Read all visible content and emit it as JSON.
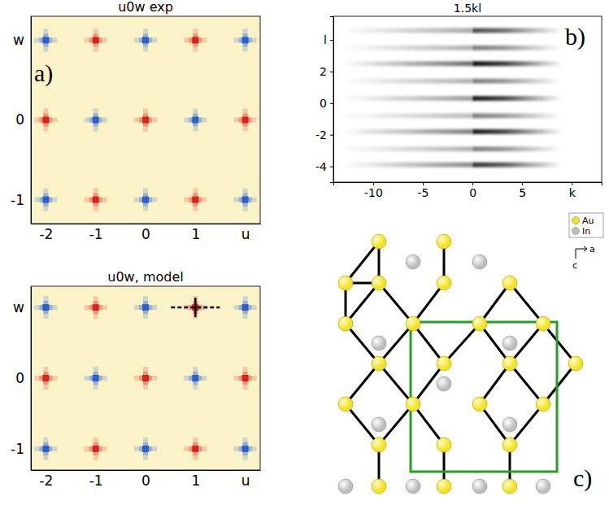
{
  "chart_data": [
    {
      "type": "heatmap",
      "title": "u0w exp",
      "panel_label": "a)",
      "x": [
        -2,
        -1,
        0,
        1,
        2
      ],
      "y": [
        1,
        0,
        -1
      ],
      "values": [
        [
          -1,
          1,
          -1,
          1,
          -1
        ],
        [
          1,
          -1,
          1,
          -1,
          1
        ],
        [
          -1,
          1,
          -1,
          1,
          -1
        ]
      ],
      "colors": [
        "#2a5fd0",
        "#d8231c"
      ],
      "xlim": [
        -2.3,
        2.3
      ],
      "ylim": [
        -1.3,
        1.3
      ],
      "xticks": [
        -2,
        -1,
        0,
        1,
        {
          "value": 2,
          "label": "u"
        }
      ],
      "yticks": [
        {
          "value": 1,
          "label": "w"
        },
        0,
        -1
      ]
    },
    {
      "type": "heatmap",
      "title": "u0w, model",
      "x": [
        -2,
        -1,
        0,
        1,
        2
      ],
      "y": [
        1,
        0,
        -1
      ],
      "values": [
        [
          -1,
          1,
          -1,
          1,
          -1
        ],
        [
          1,
          -1,
          1,
          -1,
          1
        ],
        [
          -1,
          1,
          -1,
          1,
          -1
        ]
      ],
      "colors": [
        "#2a5fd0",
        "#d8231c"
      ],
      "xlim": [
        -2.3,
        2.3
      ],
      "ylim": [
        -1.3,
        1.3
      ],
      "xticks": [
        -2,
        -1,
        0,
        1,
        {
          "value": 2,
          "label": "u"
        }
      ],
      "yticks": [
        {
          "value": 1,
          "label": "w"
        },
        0,
        -1
      ],
      "series": [
        {
          "type": "scatter",
          "marker": "cross",
          "line_style": "dashed",
          "color": "#000000",
          "x": [
            1
          ],
          "values": [
            1
          ]
        }
      ]
    },
    {
      "type": "image",
      "title": "1.5kl",
      "panel_label": "b)",
      "xlim": [
        -14,
        13
      ],
      "ylim": [
        -5,
        5.5
      ],
      "xticks": [
        -10,
        -5,
        0,
        5,
        {
          "value": 10,
          "label": "k"
        }
      ],
      "yticks": [
        {
          "value": 4,
          "label": "l"
        },
        2,
        0,
        -2,
        -4
      ],
      "series": [
        {
          "type": "streak",
          "color": "#3c3c3c",
          "k_range": [
            -13,
            0
          ],
          "y": [
            4.6,
            3.5,
            2.5,
            1.4,
            0.3,
            -0.8,
            -1.8,
            -2.9,
            -3.9
          ],
          "values": [
            0.45,
            0.4,
            0.75,
            0.4,
            0.5,
            0.35,
            0.65,
            0.4,
            0.6
          ]
        },
        {
          "type": "streak",
          "color": "#000000",
          "k_range": [
            0,
            9
          ],
          "y": [
            4.6,
            3.5,
            2.5,
            1.4,
            0.3,
            -0.8,
            -1.8,
            -2.9,
            -3.9
          ],
          "values": [
            0.7,
            0.5,
            0.95,
            0.5,
            0.9,
            0.5,
            0.9,
            0.5,
            0.8
          ]
        }
      ]
    }
  ],
  "diagram": {
    "panel_label": "c)",
    "legend": [
      {
        "label": "Au",
        "color": "#f3e31c"
      },
      {
        "label": "In",
        "color": "#bdbdbd"
      }
    ],
    "axes": {
      "horizontal": "a",
      "vertical": "c"
    },
    "cell_color": "#22a022"
  }
}
